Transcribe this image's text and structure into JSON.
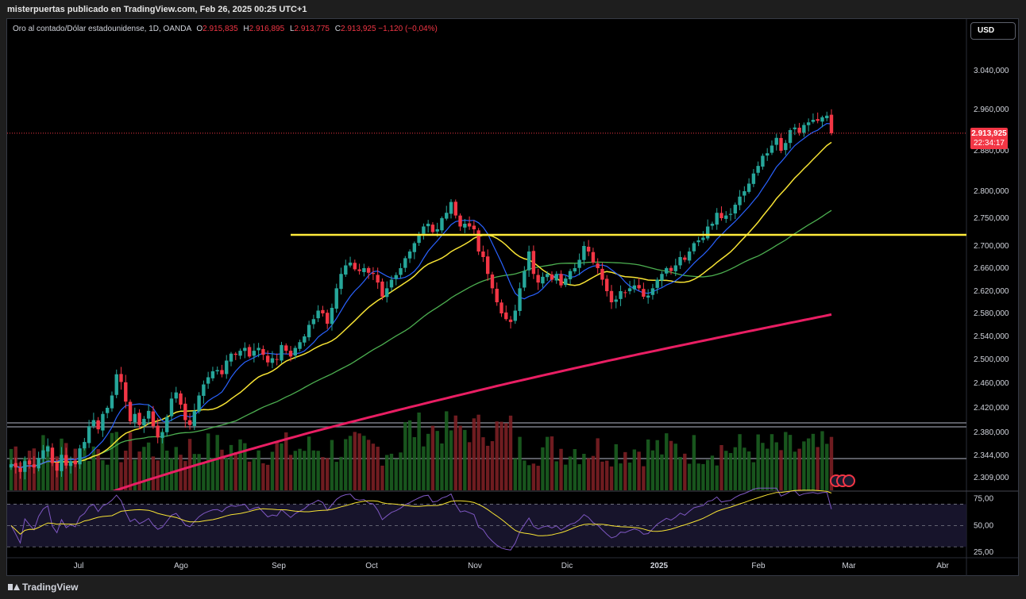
{
  "header": {
    "publish_line": "misterpuertas publicado en TradingView.com, Feb 26, 2025 00:25 UTC+1"
  },
  "legend": {
    "symbol": "Oro al contado/Dólar estadounidense, 1D, OANDA",
    "o_key": "O",
    "o_val": "2.915,835",
    "h_key": "H",
    "h_val": "2.916,895",
    "l_key": "L",
    "l_val": "2.913,775",
    "c_key": "C",
    "c_val": "2.913,925",
    "change": "−1,120 (−0,04%)"
  },
  "currency_button": "USD",
  "price_tag": {
    "price": "2.913,925",
    "countdown": "22:34:17"
  },
  "footer": {
    "brand": "TradingView"
  },
  "colors": {
    "up": "#26a69a",
    "down": "#f23645",
    "sma_fast": "#2962ff",
    "sma_yellow": "#f7e334",
    "sma_green": "#4caf50",
    "sma_pink": "#e91e63",
    "level": "#ffeb3b",
    "rsi": "#7e57c2"
  },
  "chart_data": {
    "type": "candlestick",
    "title": "",
    "y_ticks": [
      {
        "v": 3040,
        "label": "3.040,000"
      },
      {
        "v": 2960,
        "label": "2.960,000"
      },
      {
        "v": 2880,
        "label": "2.880,000"
      },
      {
        "v": 2800,
        "label": "2.800,000"
      },
      {
        "v": 2750,
        "label": "2.750,000"
      },
      {
        "v": 2700,
        "label": "2.700,000"
      },
      {
        "v": 2660,
        "label": "2.660,000"
      },
      {
        "v": 2620,
        "label": "2.620,000"
      },
      {
        "v": 2580,
        "label": "2.580,000"
      },
      {
        "v": 2540,
        "label": "2.540,000"
      },
      {
        "v": 2500,
        "label": "2.500,000"
      },
      {
        "v": 2460,
        "label": "2.460,000"
      },
      {
        "v": 2420,
        "label": "2.420,000"
      },
      {
        "v": 2380,
        "label": "2.380,000"
      },
      {
        "v": 2344,
        "label": "2.344,000"
      },
      {
        "v": 2309,
        "label": "2.309,000"
      }
    ],
    "x_ticks": [
      "Jul",
      "Ago",
      "Sep",
      "Oct",
      "Nov",
      "Dic",
      "2025",
      "Feb",
      "Mar",
      "Abr"
    ],
    "horizontal_level": 2720,
    "closes": [
      2330,
      2325,
      2318,
      2335,
      2330,
      2325,
      2340,
      2352,
      2358,
      2332,
      2320,
      2345,
      2328,
      2335,
      2330,
      2355,
      2365,
      2390,
      2400,
      2385,
      2410,
      2420,
      2440,
      2475,
      2462,
      2430,
      2398,
      2410,
      2392,
      2402,
      2415,
      2390,
      2372,
      2380,
      2405,
      2435,
      2445,
      2425,
      2400,
      2392,
      2415,
      2440,
      2458,
      2470,
      2480,
      2482,
      2475,
      2498,
      2510,
      2508,
      2515,
      2520,
      2505,
      2515,
      2520,
      2508,
      2495,
      2502,
      2500,
      2525,
      2515,
      2505,
      2520,
      2530,
      2540,
      2560,
      2570,
      2585,
      2580,
      2562,
      2590,
      2625,
      2650,
      2665,
      2670,
      2658,
      2655,
      2660,
      2652,
      2650,
      2635,
      2610,
      2625,
      2640,
      2648,
      2660,
      2678,
      2690,
      2705,
      2720,
      2735,
      2740,
      2725,
      2730,
      2750,
      2760,
      2780,
      2755,
      2735,
      2740,
      2735,
      2730,
      2690,
      2680,
      2650,
      2625,
      2600,
      2580,
      2570,
      2565,
      2585,
      2625,
      2655,
      2690,
      2650,
      2635,
      2645,
      2650,
      2640,
      2650,
      2630,
      2642,
      2655,
      2660,
      2675,
      2700,
      2690,
      2670,
      2660,
      2640,
      2620,
      2600,
      2605,
      2620,
      2618,
      2625,
      2630,
      2625,
      2610,
      2612,
      2625,
      2640,
      2650,
      2660,
      2655,
      2665,
      2680,
      2675,
      2690,
      2705,
      2710,
      2715,
      2735,
      2740,
      2760,
      2750,
      2755,
      2758,
      2775,
      2790,
      2800,
      2815,
      2835,
      2850,
      2870,
      2875,
      2890,
      2905,
      2880,
      2895,
      2920,
      2925,
      2915,
      2930,
      2935,
      2940,
      2938,
      2945,
      2948,
      2914
    ],
    "sma_yellow_last": 2875,
    "sma_green_last": 2760,
    "sma_pink_last": 2578,
    "rsi_ticks": [
      {
        "v": 75,
        "label": "75,00"
      },
      {
        "v": 50,
        "label": "50,00"
      },
      {
        "v": 25,
        "label": "25,00"
      }
    ]
  }
}
